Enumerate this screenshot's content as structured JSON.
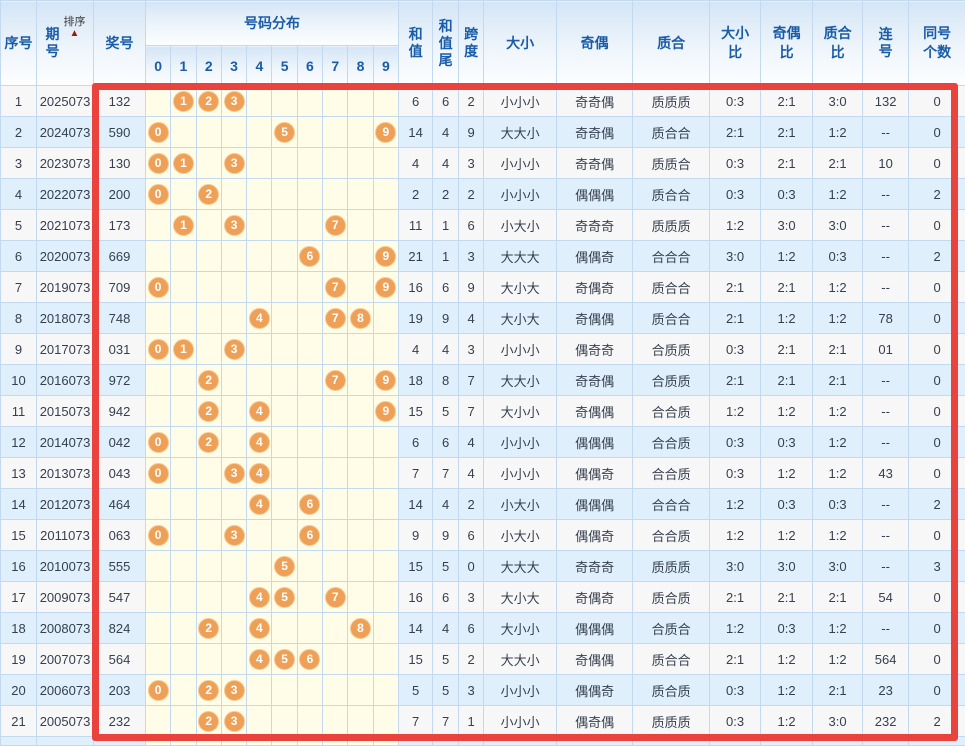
{
  "table": {
    "columns": {
      "seq": "序号",
      "period": "期号",
      "sort": "排序",
      "sort_arrow": "▲",
      "prize": "奖号",
      "distribution": "号码分布",
      "digits": [
        "0",
        "1",
        "2",
        "3",
        "4",
        "5",
        "6",
        "7",
        "8",
        "9"
      ],
      "sum": "和值",
      "sum_tail": "和值尾",
      "span": "跨度",
      "size": "大小",
      "parity": "奇偶",
      "prime": "质合",
      "size_ratio": "大小比",
      "parity_ratio": "奇偶比",
      "prime_ratio": "质合比",
      "consecutive": "连号",
      "same_count": "同号个数"
    },
    "rows": [
      {
        "seq": "1",
        "period": "2025073",
        "prize": "132",
        "balls": [
          1,
          2,
          3
        ],
        "sum": "6",
        "tail": "6",
        "span": "2",
        "size": "小小小",
        "parity": "奇奇偶",
        "prime": "质质质",
        "size_ratio": "0:3",
        "parity_ratio": "2:1",
        "prime_ratio": "3:0",
        "consecutive": "132",
        "same_count": "0"
      },
      {
        "seq": "2",
        "period": "2024073",
        "prize": "590",
        "balls": [
          0,
          5,
          9
        ],
        "sum": "14",
        "tail": "4",
        "span": "9",
        "size": "大大小",
        "parity": "奇奇偶",
        "prime": "质合合",
        "size_ratio": "2:1",
        "parity_ratio": "2:1",
        "prime_ratio": "1:2",
        "consecutive": "--",
        "same_count": "0"
      },
      {
        "seq": "3",
        "period": "2023073",
        "prize": "130",
        "balls": [
          0,
          1,
          3
        ],
        "sum": "4",
        "tail": "4",
        "span": "3",
        "size": "小小小",
        "parity": "奇奇偶",
        "prime": "质质合",
        "size_ratio": "0:3",
        "parity_ratio": "2:1",
        "prime_ratio": "2:1",
        "consecutive": "10",
        "same_count": "0"
      },
      {
        "seq": "4",
        "period": "2022073",
        "prize": "200",
        "balls": [
          0,
          2
        ],
        "sum": "2",
        "tail": "2",
        "span": "2",
        "size": "小小小",
        "parity": "偶偶偶",
        "prime": "质合合",
        "size_ratio": "0:3",
        "parity_ratio": "0:3",
        "prime_ratio": "1:2",
        "consecutive": "--",
        "same_count": "2"
      },
      {
        "seq": "5",
        "period": "2021073",
        "prize": "173",
        "balls": [
          1,
          3,
          7
        ],
        "sum": "11",
        "tail": "1",
        "span": "6",
        "size": "小大小",
        "parity": "奇奇奇",
        "prime": "质质质",
        "size_ratio": "1:2",
        "parity_ratio": "3:0",
        "prime_ratio": "3:0",
        "consecutive": "--",
        "same_count": "0"
      },
      {
        "seq": "6",
        "period": "2020073",
        "prize": "669",
        "balls": [
          6,
          9
        ],
        "sum": "21",
        "tail": "1",
        "span": "3",
        "size": "大大大",
        "parity": "偶偶奇",
        "prime": "合合合",
        "size_ratio": "3:0",
        "parity_ratio": "1:2",
        "prime_ratio": "0:3",
        "consecutive": "--",
        "same_count": "2"
      },
      {
        "seq": "7",
        "period": "2019073",
        "prize": "709",
        "balls": [
          0,
          7,
          9
        ],
        "sum": "16",
        "tail": "6",
        "span": "9",
        "size": "大小大",
        "parity": "奇偶奇",
        "prime": "质合合",
        "size_ratio": "2:1",
        "parity_ratio": "2:1",
        "prime_ratio": "1:2",
        "consecutive": "--",
        "same_count": "0"
      },
      {
        "seq": "8",
        "period": "2018073",
        "prize": "748",
        "balls": [
          4,
          7,
          8
        ],
        "sum": "19",
        "tail": "9",
        "span": "4",
        "size": "大小大",
        "parity": "奇偶偶",
        "prime": "质合合",
        "size_ratio": "2:1",
        "parity_ratio": "1:2",
        "prime_ratio": "1:2",
        "consecutive": "78",
        "same_count": "0"
      },
      {
        "seq": "9",
        "period": "2017073",
        "prize": "031",
        "balls": [
          0,
          1,
          3
        ],
        "sum": "4",
        "tail": "4",
        "span": "3",
        "size": "小小小",
        "parity": "偶奇奇",
        "prime": "合质质",
        "size_ratio": "0:3",
        "parity_ratio": "2:1",
        "prime_ratio": "2:1",
        "consecutive": "01",
        "same_count": "0"
      },
      {
        "seq": "10",
        "period": "2016073",
        "prize": "972",
        "balls": [
          2,
          7,
          9
        ],
        "sum": "18",
        "tail": "8",
        "span": "7",
        "size": "大大小",
        "parity": "奇奇偶",
        "prime": "合质质",
        "size_ratio": "2:1",
        "parity_ratio": "2:1",
        "prime_ratio": "2:1",
        "consecutive": "--",
        "same_count": "0"
      },
      {
        "seq": "11",
        "period": "2015073",
        "prize": "942",
        "balls": [
          2,
          4,
          9
        ],
        "sum": "15",
        "tail": "5",
        "span": "7",
        "size": "大小小",
        "parity": "奇偶偶",
        "prime": "合合质",
        "size_ratio": "1:2",
        "parity_ratio": "1:2",
        "prime_ratio": "1:2",
        "consecutive": "--",
        "same_count": "0"
      },
      {
        "seq": "12",
        "period": "2014073",
        "prize": "042",
        "balls": [
          0,
          2,
          4
        ],
        "sum": "6",
        "tail": "6",
        "span": "4",
        "size": "小小小",
        "parity": "偶偶偶",
        "prime": "合合质",
        "size_ratio": "0:3",
        "parity_ratio": "0:3",
        "prime_ratio": "1:2",
        "consecutive": "--",
        "same_count": "0"
      },
      {
        "seq": "13",
        "period": "2013073",
        "prize": "043",
        "balls": [
          0,
          3,
          4
        ],
        "sum": "7",
        "tail": "7",
        "span": "4",
        "size": "小小小",
        "parity": "偶偶奇",
        "prime": "合合质",
        "size_ratio": "0:3",
        "parity_ratio": "1:2",
        "prime_ratio": "1:2",
        "consecutive": "43",
        "same_count": "0"
      },
      {
        "seq": "14",
        "period": "2012073",
        "prize": "464",
        "balls": [
          4,
          6
        ],
        "sum": "14",
        "tail": "4",
        "span": "2",
        "size": "小大小",
        "parity": "偶偶偶",
        "prime": "合合合",
        "size_ratio": "1:2",
        "parity_ratio": "0:3",
        "prime_ratio": "0:3",
        "consecutive": "--",
        "same_count": "2"
      },
      {
        "seq": "15",
        "period": "2011073",
        "prize": "063",
        "balls": [
          0,
          3,
          6
        ],
        "sum": "9",
        "tail": "9",
        "span": "6",
        "size": "小大小",
        "parity": "偶偶奇",
        "prime": "合合质",
        "size_ratio": "1:2",
        "parity_ratio": "1:2",
        "prime_ratio": "1:2",
        "consecutive": "--",
        "same_count": "0"
      },
      {
        "seq": "16",
        "period": "2010073",
        "prize": "555",
        "balls": [
          5
        ],
        "sum": "15",
        "tail": "5",
        "span": "0",
        "size": "大大大",
        "parity": "奇奇奇",
        "prime": "质质质",
        "size_ratio": "3:0",
        "parity_ratio": "3:0",
        "prime_ratio": "3:0",
        "consecutive": "--",
        "same_count": "3"
      },
      {
        "seq": "17",
        "period": "2009073",
        "prize": "547",
        "balls": [
          4,
          5,
          7
        ],
        "sum": "16",
        "tail": "6",
        "span": "3",
        "size": "大小大",
        "parity": "奇偶奇",
        "prime": "质合质",
        "size_ratio": "2:1",
        "parity_ratio": "2:1",
        "prime_ratio": "2:1",
        "consecutive": "54",
        "same_count": "0"
      },
      {
        "seq": "18",
        "period": "2008073",
        "prize": "824",
        "balls": [
          2,
          4,
          8
        ],
        "sum": "14",
        "tail": "4",
        "span": "6",
        "size": "大小小",
        "parity": "偶偶偶",
        "prime": "合质合",
        "size_ratio": "1:2",
        "parity_ratio": "0:3",
        "prime_ratio": "1:2",
        "consecutive": "--",
        "same_count": "0"
      },
      {
        "seq": "19",
        "period": "2007073",
        "prize": "564",
        "balls": [
          4,
          5,
          6
        ],
        "sum": "15",
        "tail": "5",
        "span": "2",
        "size": "大大小",
        "parity": "奇偶偶",
        "prime": "质合合",
        "size_ratio": "2:1",
        "parity_ratio": "1:2",
        "prime_ratio": "1:2",
        "consecutive": "564",
        "same_count": "0"
      },
      {
        "seq": "20",
        "period": "2006073",
        "prize": "203",
        "balls": [
          0,
          2,
          3
        ],
        "sum": "5",
        "tail": "5",
        "span": "3",
        "size": "小小小",
        "parity": "偶偶奇",
        "prime": "质合质",
        "size_ratio": "0:3",
        "parity_ratio": "1:2",
        "prime_ratio": "2:1",
        "consecutive": "23",
        "same_count": "0"
      },
      {
        "seq": "21",
        "period": "2005073",
        "prize": "232",
        "balls": [
          2,
          3
        ],
        "sum": "7",
        "tail": "7",
        "span": "1",
        "size": "小小小",
        "parity": "偶奇偶",
        "prime": "质质质",
        "size_ratio": "0:3",
        "parity_ratio": "1:2",
        "prime_ratio": "3:0",
        "consecutive": "232",
        "same_count": "2"
      }
    ]
  },
  "colors": {
    "accent_red": "#ea433d",
    "ball_orange": "#efa057",
    "header_text_blue": "#1a5ca8",
    "row_even_blue": "#dfeffb",
    "ball_column_yellow": "#fffde8"
  }
}
